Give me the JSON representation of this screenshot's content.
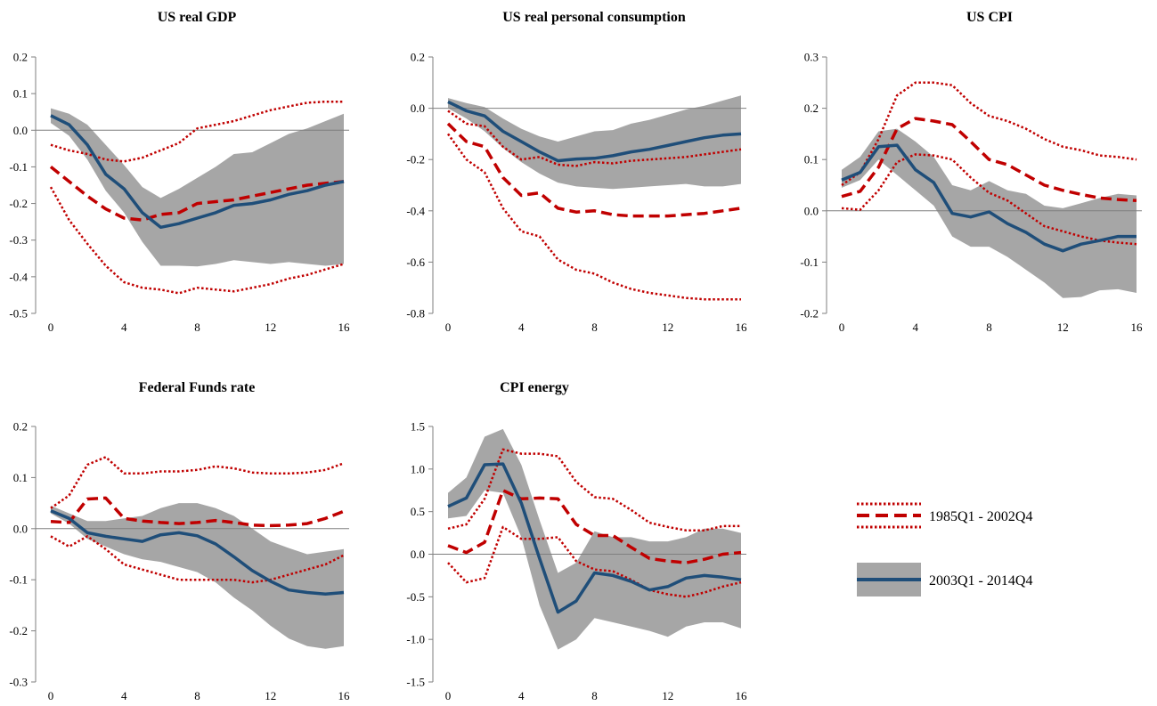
{
  "legend": {
    "entry_1985": "1985Q1 - 2002Q4",
    "entry_2003": "2003Q1 - 2014Q4"
  },
  "colors": {
    "band": "#a6a6a6",
    "median_2003": "#1f4e79",
    "series_1985": "#c00000",
    "axis": "#7f7f7f",
    "zero_line": "#7f7f7f"
  },
  "chart_data": [
    {
      "type": "line",
      "title": "US real GDP",
      "x": [
        0,
        1,
        2,
        3,
        4,
        5,
        6,
        7,
        8,
        9,
        10,
        11,
        12,
        13,
        14,
        15,
        16
      ],
      "xticks": [
        0,
        4,
        8,
        12,
        16
      ],
      "yticks": [
        "-0.5",
        "-0.4",
        "-0.3",
        "-0.2",
        "-0.1",
        "0.0",
        "0.1",
        "0.2"
      ],
      "ylim": [
        -0.5,
        0.2
      ],
      "band_2003": {
        "upper": [
          0.06,
          0.045,
          0.015,
          -0.04,
          -0.095,
          -0.155,
          -0.185,
          -0.16,
          -0.13,
          -0.1,
          -0.065,
          -0.06,
          -0.035,
          -0.01,
          0.005,
          0.025,
          0.045
        ],
        "lower": [
          0.02,
          -0.015,
          -0.08,
          -0.165,
          -0.225,
          -0.305,
          -0.37,
          -0.37,
          -0.372,
          -0.365,
          -0.355,
          -0.36,
          -0.365,
          -0.36,
          -0.365,
          -0.37,
          -0.365
        ]
      },
      "series": [
        {
          "name": "2003Q1 - 2014Q4",
          "style": "solid",
          "values": [
            0.04,
            0.015,
            -0.04,
            -0.12,
            -0.16,
            -0.225,
            -0.265,
            -0.255,
            -0.24,
            -0.225,
            -0.205,
            -0.2,
            -0.19,
            -0.175,
            -0.165,
            -0.15,
            -0.14
          ]
        },
        {
          "name": "1985Q1 - 2002Q4",
          "style": "dashed",
          "values": [
            -0.1,
            -0.14,
            -0.18,
            -0.215,
            -0.24,
            -0.245,
            -0.23,
            -0.225,
            -0.2,
            -0.195,
            -0.19,
            -0.18,
            -0.17,
            -0.16,
            -0.15,
            -0.145,
            -0.14
          ]
        },
        {
          "name": "1985Q1 - 2002Q4 upper",
          "style": "dotted",
          "values": [
            -0.04,
            -0.055,
            -0.065,
            -0.08,
            -0.085,
            -0.075,
            -0.055,
            -0.035,
            0.005,
            0.015,
            0.025,
            0.04,
            0.055,
            0.065,
            0.075,
            0.078,
            0.078
          ]
        },
        {
          "name": "1985Q1 - 2002Q4 lower",
          "style": "dotted",
          "values": [
            -0.155,
            -0.245,
            -0.31,
            -0.37,
            -0.415,
            -0.43,
            -0.435,
            -0.445,
            -0.43,
            -0.435,
            -0.44,
            -0.43,
            -0.42,
            -0.405,
            -0.395,
            -0.38,
            -0.365
          ]
        }
      ]
    },
    {
      "type": "line",
      "title": "US real personal consumption",
      "x": [
        0,
        1,
        2,
        3,
        4,
        5,
        6,
        7,
        8,
        9,
        10,
        11,
        12,
        13,
        14,
        15,
        16
      ],
      "xticks": [
        0,
        4,
        8,
        12,
        16
      ],
      "yticks": [
        "-0.8",
        "-0.6",
        "-0.4",
        "-0.2",
        "0.0",
        "0.2"
      ],
      "ylim": [
        -0.8,
        0.2
      ],
      "band_2003": {
        "upper": [
          0.04,
          0.02,
          0.005,
          -0.04,
          -0.08,
          -0.11,
          -0.13,
          -0.11,
          -0.09,
          -0.085,
          -0.06,
          -0.045,
          -0.025,
          -0.005,
          0.01,
          0.03,
          0.05
        ],
        "lower": [
          0.0,
          -0.04,
          -0.09,
          -0.155,
          -0.21,
          -0.255,
          -0.29,
          -0.305,
          -0.31,
          -0.315,
          -0.31,
          -0.305,
          -0.3,
          -0.295,
          -0.305,
          -0.305,
          -0.295
        ]
      },
      "series": [
        {
          "name": "2003Q1 - 2014Q4",
          "style": "solid",
          "values": [
            0.025,
            -0.01,
            -0.03,
            -0.09,
            -0.13,
            -0.17,
            -0.205,
            -0.198,
            -0.195,
            -0.185,
            -0.17,
            -0.16,
            -0.145,
            -0.13,
            -0.115,
            -0.105,
            -0.1
          ]
        },
        {
          "name": "1985Q1 - 2002Q4",
          "style": "dashed",
          "values": [
            -0.06,
            -0.13,
            -0.15,
            -0.27,
            -0.34,
            -0.33,
            -0.39,
            -0.405,
            -0.4,
            -0.415,
            -0.42,
            -0.42,
            -0.42,
            -0.415,
            -0.41,
            -0.4,
            -0.39
          ]
        },
        {
          "name": "1985Q1 - 2002Q4 upper",
          "style": "dotted",
          "values": [
            -0.01,
            -0.06,
            -0.07,
            -0.15,
            -0.2,
            -0.19,
            -0.22,
            -0.225,
            -0.21,
            -0.215,
            -0.205,
            -0.2,
            -0.195,
            -0.19,
            -0.18,
            -0.17,
            -0.16
          ]
        },
        {
          "name": "1985Q1 - 2002Q4 lower",
          "style": "dotted",
          "values": [
            -0.1,
            -0.2,
            -0.25,
            -0.39,
            -0.48,
            -0.5,
            -0.59,
            -0.63,
            -0.645,
            -0.68,
            -0.705,
            -0.72,
            -0.73,
            -0.74,
            -0.745,
            -0.745,
            -0.745
          ]
        }
      ]
    },
    {
      "type": "line",
      "title": "US CPI",
      "x": [
        0,
        1,
        2,
        3,
        4,
        5,
        6,
        7,
        8,
        9,
        10,
        11,
        12,
        13,
        14,
        15,
        16
      ],
      "xticks": [
        0,
        4,
        8,
        12,
        16
      ],
      "yticks": [
        "-0.2",
        "-0.1",
        "0.0",
        "0.1",
        "0.2",
        "0.3"
      ],
      "ylim": [
        -0.2,
        0.3
      ],
      "band_2003": {
        "upper": [
          0.08,
          0.105,
          0.155,
          0.16,
          0.135,
          0.105,
          0.05,
          0.04,
          0.058,
          0.04,
          0.033,
          0.01,
          0.005,
          0.015,
          0.025,
          0.033,
          0.03
        ],
        "lower": [
          0.045,
          0.06,
          0.1,
          0.07,
          0.04,
          0.01,
          -0.05,
          -0.07,
          -0.07,
          -0.09,
          -0.115,
          -0.14,
          -0.17,
          -0.168,
          -0.155,
          -0.153,
          -0.16
        ]
      },
      "series": [
        {
          "name": "2003Q1 - 2014Q4",
          "style": "solid",
          "values": [
            0.06,
            0.075,
            0.125,
            0.128,
            0.08,
            0.055,
            -0.005,
            -0.012,
            -0.002,
            -0.025,
            -0.042,
            -0.065,
            -0.078,
            -0.065,
            -0.058,
            -0.05,
            -0.05
          ]
        },
        {
          "name": "1985Q1 - 2002Q4",
          "style": "dashed",
          "values": [
            0.028,
            0.038,
            0.085,
            0.16,
            0.18,
            0.175,
            0.168,
            0.135,
            0.1,
            0.09,
            0.07,
            0.05,
            0.04,
            0.032,
            0.025,
            0.022,
            0.02
          ]
        },
        {
          "name": "1985Q1 - 2002Q4 upper",
          "style": "dotted",
          "values": [
            0.05,
            0.075,
            0.14,
            0.225,
            0.25,
            0.25,
            0.245,
            0.21,
            0.185,
            0.175,
            0.16,
            0.14,
            0.125,
            0.118,
            0.108,
            0.105,
            0.1
          ]
        },
        {
          "name": "1985Q1 - 2002Q4 lower",
          "style": "dotted",
          "values": [
            0.005,
            0.002,
            0.04,
            0.095,
            0.11,
            0.108,
            0.1,
            0.065,
            0.035,
            0.02,
            -0.005,
            -0.03,
            -0.04,
            -0.05,
            -0.058,
            -0.062,
            -0.065
          ]
        }
      ]
    },
    {
      "type": "line",
      "title": "Federal Funds rate",
      "x": [
        0,
        1,
        2,
        3,
        4,
        5,
        6,
        7,
        8,
        9,
        10,
        11,
        12,
        13,
        14,
        15,
        16
      ],
      "xticks": [
        0,
        4,
        8,
        12,
        16
      ],
      "yticks": [
        "-0.3",
        "-0.2",
        "-0.1",
        "0.0",
        "0.1",
        "0.2"
      ],
      "ylim": [
        -0.3,
        0.2
      ],
      "band_2003": {
        "upper": [
          0.045,
          0.03,
          0.015,
          0.015,
          0.02,
          0.025,
          0.04,
          0.05,
          0.05,
          0.04,
          0.025,
          0.0,
          -0.025,
          -0.038,
          -0.05,
          -0.045,
          -0.04
        ],
        "lower": [
          0.03,
          0.01,
          -0.02,
          -0.035,
          -0.05,
          -0.06,
          -0.065,
          -0.075,
          -0.085,
          -0.105,
          -0.135,
          -0.16,
          -0.19,
          -0.215,
          -0.23,
          -0.235,
          -0.23
        ]
      },
      "series": [
        {
          "name": "2003Q1 - 2014Q4",
          "style": "solid",
          "values": [
            0.035,
            0.02,
            -0.008,
            -0.015,
            -0.02,
            -0.025,
            -0.012,
            -0.008,
            -0.014,
            -0.03,
            -0.055,
            -0.082,
            -0.103,
            -0.12,
            -0.125,
            -0.128,
            -0.125
          ]
        },
        {
          "name": "1985Q1 - 2002Q4",
          "style": "dashed",
          "values": [
            0.014,
            0.012,
            0.058,
            0.06,
            0.02,
            0.015,
            0.012,
            0.01,
            0.012,
            0.016,
            0.012,
            0.007,
            0.006,
            0.007,
            0.01,
            0.02,
            0.034
          ]
        },
        {
          "name": "1985Q1 - 2002Q4 upper",
          "style": "dotted",
          "values": [
            0.04,
            0.065,
            0.125,
            0.14,
            0.108,
            0.108,
            0.112,
            0.112,
            0.115,
            0.122,
            0.118,
            0.11,
            0.108,
            0.108,
            0.11,
            0.115,
            0.128
          ]
        },
        {
          "name": "1985Q1 - 2002Q4 lower",
          "style": "dotted",
          "values": [
            -0.015,
            -0.035,
            -0.015,
            -0.04,
            -0.07,
            -0.08,
            -0.09,
            -0.1,
            -0.1,
            -0.1,
            -0.1,
            -0.105,
            -0.1,
            -0.09,
            -0.08,
            -0.07,
            -0.052
          ]
        }
      ]
    },
    {
      "type": "line",
      "title": "CPI energy",
      "x": [
        0,
        1,
        2,
        3,
        4,
        5,
        6,
        7,
        8,
        9,
        10,
        11,
        12,
        13,
        14,
        15,
        16
      ],
      "xticks": [
        0,
        4,
        8,
        12,
        16
      ],
      "yticks": [
        "-1.5",
        "-1.0",
        "-0.5",
        "0.0",
        "0.5",
        "1.0",
        "1.5"
      ],
      "ylim": [
        -1.5,
        1.5
      ],
      "band_2003": {
        "upper": [
          0.72,
          0.9,
          1.38,
          1.47,
          1.05,
          0.4,
          -0.22,
          -0.1,
          0.27,
          0.2,
          0.2,
          0.15,
          0.15,
          0.2,
          0.3,
          0.3,
          0.25
        ],
        "lower": [
          0.42,
          0.45,
          0.75,
          0.72,
          0.2,
          -0.6,
          -1.12,
          -1.0,
          -0.75,
          -0.8,
          -0.85,
          -0.9,
          -0.97,
          -0.85,
          -0.8,
          -0.8,
          -0.87
        ]
      },
      "series": [
        {
          "name": "2003Q1 - 2014Q4",
          "style": "solid",
          "values": [
            0.56,
            0.66,
            1.05,
            1.06,
            0.6,
            -0.05,
            -0.68,
            -0.55,
            -0.22,
            -0.25,
            -0.32,
            -0.42,
            -0.38,
            -0.28,
            -0.25,
            -0.27,
            -0.3
          ]
        },
        {
          "name": "1985Q1 - 2002Q4",
          "style": "dashed",
          "values": [
            0.1,
            0.02,
            0.14,
            0.75,
            0.65,
            0.66,
            0.65,
            0.35,
            0.22,
            0.22,
            0.08,
            -0.05,
            -0.08,
            -0.1,
            -0.06,
            0.0,
            0.02
          ]
        },
        {
          "name": "1985Q1 - 2002Q4 upper",
          "style": "dotted",
          "values": [
            0.3,
            0.35,
            0.65,
            1.23,
            1.18,
            1.18,
            1.15,
            0.85,
            0.67,
            0.65,
            0.52,
            0.37,
            0.32,
            0.28,
            0.28,
            0.33,
            0.33
          ]
        },
        {
          "name": "1985Q1 - 2002Q4 lower",
          "style": "dotted",
          "values": [
            -0.1,
            -0.33,
            -0.28,
            0.32,
            0.18,
            0.18,
            0.2,
            -0.08,
            -0.18,
            -0.2,
            -0.3,
            -0.42,
            -0.47,
            -0.5,
            -0.45,
            -0.38,
            -0.33
          ]
        }
      ]
    }
  ]
}
